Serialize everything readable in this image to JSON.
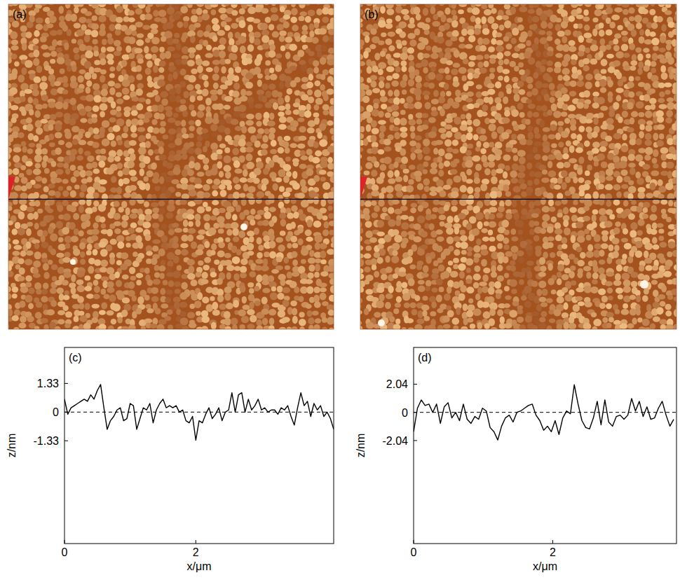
{
  "images": [
    {
      "label": "(a)"
    },
    {
      "label": "(b)"
    }
  ],
  "chart_data": [
    {
      "type": "line",
      "title": "(c)",
      "x_label": "x/μm",
      "y_label": "z/nm",
      "color": "#000000",
      "xlim": [
        0,
        4.1
      ],
      "xticks": [
        0,
        2
      ],
      "ylim": [
        -6.1,
        3.0
      ],
      "yticks": [
        -1.33,
        0,
        1.33
      ],
      "reference_line": 0,
      "line_style": "solid",
      "grid": false,
      "x": [
        0,
        0.05,
        0.1,
        0.15,
        0.2,
        0.25,
        0.3,
        0.35,
        0.4,
        0.45,
        0.5,
        0.55,
        0.6,
        0.65,
        0.7,
        0.75,
        0.8,
        0.85,
        0.9,
        0.95,
        1,
        1.05,
        1.1,
        1.15,
        1.2,
        1.25,
        1.3,
        1.35,
        1.4,
        1.45,
        1.5,
        1.55,
        1.6,
        1.65,
        1.7,
        1.75,
        1.8,
        1.85,
        1.9,
        1.95,
        2,
        2.05,
        2.1,
        2.15,
        2.2,
        2.25,
        2.3,
        2.35,
        2.4,
        2.45,
        2.5,
        2.55,
        2.6,
        2.65,
        2.7,
        2.75,
        2.8,
        2.85,
        2.9,
        2.95,
        3,
        3.05,
        3.1,
        3.15,
        3.2,
        3.25,
        3.3,
        3.35,
        3.4,
        3.45,
        3.5,
        3.55,
        3.6,
        3.65,
        3.7,
        3.75,
        3.8,
        3.85,
        3.9,
        3.95,
        4,
        4.05,
        4.1
      ],
      "values": [
        0.6,
        -0.1,
        0.2,
        0.3,
        0.4,
        0.5,
        0.6,
        0.5,
        0.8,
        0.6,
        1.0,
        1.28,
        0.2,
        -0.8,
        -0.4,
        -0.2,
        0.1,
        0.2,
        -0.4,
        -0.3,
        0.4,
        0.3,
        -0.8,
        -0.3,
        0.2,
        0.1,
        0.4,
        -0.5,
        0.1,
        0.4,
        0.6,
        0.2,
        0.3,
        0.2,
        0.3,
        0.0,
        0.1,
        -0.4,
        -0.5,
        -0.2,
        -1.3,
        -0.4,
        -0.5,
        -0.1,
        0.2,
        -0.3,
        -0.1,
        0.2,
        -0.4,
        0.0,
        0.1,
        0.9,
        0.0,
        0.8,
        0.9,
        0.0,
        0.6,
        0.1,
        0.3,
        0.6,
        0.1,
        0.2,
        0.0,
        0.1,
        0.1,
        -0.1,
        0.2,
        0.1,
        0.3,
        -0.2,
        -0.6,
        0.2,
        0.9,
        0.3,
        0.5,
        -0.2,
        0.4,
        0.1,
        0.3,
        -0.2,
        0.0,
        -0.3,
        -0.8
      ]
    },
    {
      "type": "line",
      "title": "(d)",
      "x_label": "x/μm",
      "y_label": "z/nm",
      "color": "#000000",
      "xlim": [
        0,
        3.78
      ],
      "xticks": [
        0,
        2
      ],
      "ylim": [
        -9.5,
        4.7
      ],
      "yticks": [
        -2.04,
        0,
        2.04
      ],
      "reference_line": 0,
      "line_style": "solid",
      "grid": false,
      "x": [
        0,
        0.055,
        0.11,
        0.165,
        0.22,
        0.275,
        0.33,
        0.385,
        0.44,
        0.495,
        0.55,
        0.605,
        0.66,
        0.715,
        0.77,
        0.825,
        0.88,
        0.935,
        0.99,
        1.045,
        1.1,
        1.155,
        1.21,
        1.265,
        1.32,
        1.375,
        1.43,
        1.485,
        1.54,
        1.595,
        1.65,
        1.705,
        1.76,
        1.815,
        1.87,
        1.925,
        1.98,
        2.035,
        2.09,
        2.145,
        2.2,
        2.255,
        2.31,
        2.365,
        2.42,
        2.475,
        2.53,
        2.585,
        2.64,
        2.695,
        2.75,
        2.805,
        2.86,
        2.915,
        2.97,
        3.025,
        3.08,
        3.135,
        3.19,
        3.245,
        3.3,
        3.355,
        3.41,
        3.465,
        3.52,
        3.575,
        3.63,
        3.685,
        3.74
      ],
      "values": [
        -1.4,
        0.3,
        0.9,
        0.5,
        0.6,
        0.0,
        0.6,
        -0.8,
        0.4,
        0.7,
        -0.4,
        0.0,
        -0.6,
        0.6,
        -0.5,
        -0.8,
        -0.3,
        -0.5,
        0.3,
        0.1,
        -1.1,
        -1.4,
        -2.0,
        -1.0,
        -0.4,
        -0.2,
        -0.7,
        0.0,
        0.1,
        0.3,
        0.5,
        0.6,
        -0.2,
        -0.6,
        -1.3,
        -1.0,
        -1.4,
        -0.6,
        -1.6,
        -0.4,
        0.1,
        -0.1,
        2.0,
        0.6,
        -0.6,
        -1.1,
        -1.2,
        -0.4,
        0.8,
        -0.9,
        0.9,
        -0.7,
        -1.0,
        -0.3,
        -0.2,
        -0.5,
        -0.2,
        1.0,
        0.1,
        0.8,
        -0.3,
        0.4,
        -0.5,
        -0.4,
        0.3,
        0.8,
        -0.2,
        -1.0,
        -0.5
      ]
    }
  ]
}
